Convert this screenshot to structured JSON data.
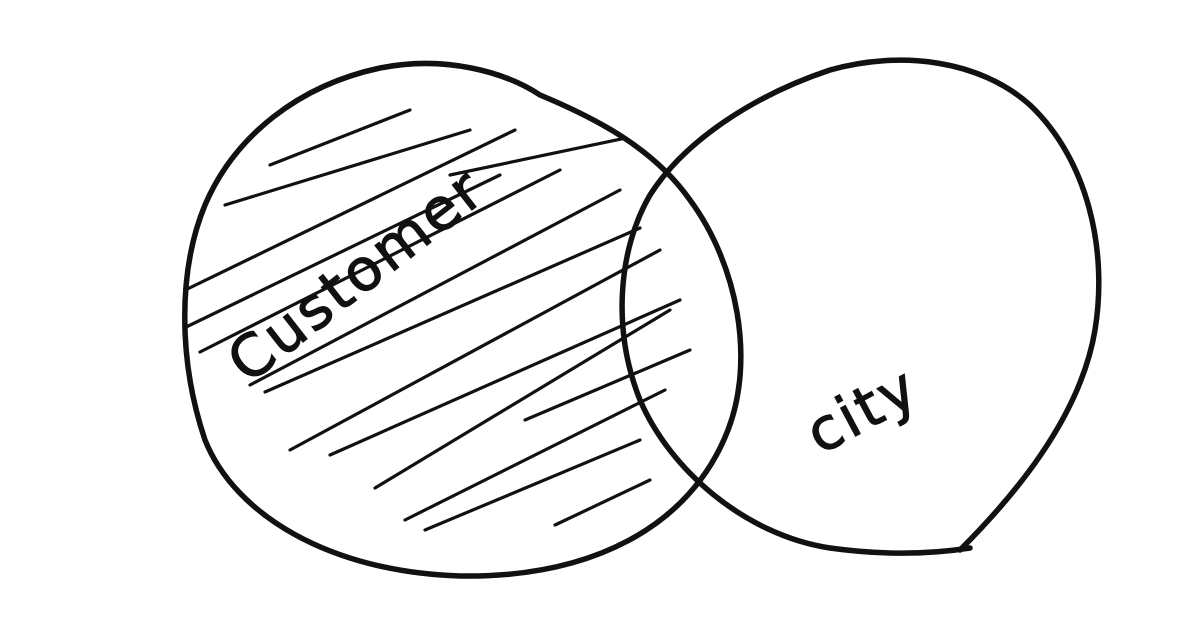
{
  "diagram": {
    "type": "venn",
    "circles": [
      {
        "label": "Customer",
        "shaded": true
      },
      {
        "label": "city",
        "shaded": false
      }
    ],
    "ink_color": "#111111",
    "background": "#ffffff"
  }
}
